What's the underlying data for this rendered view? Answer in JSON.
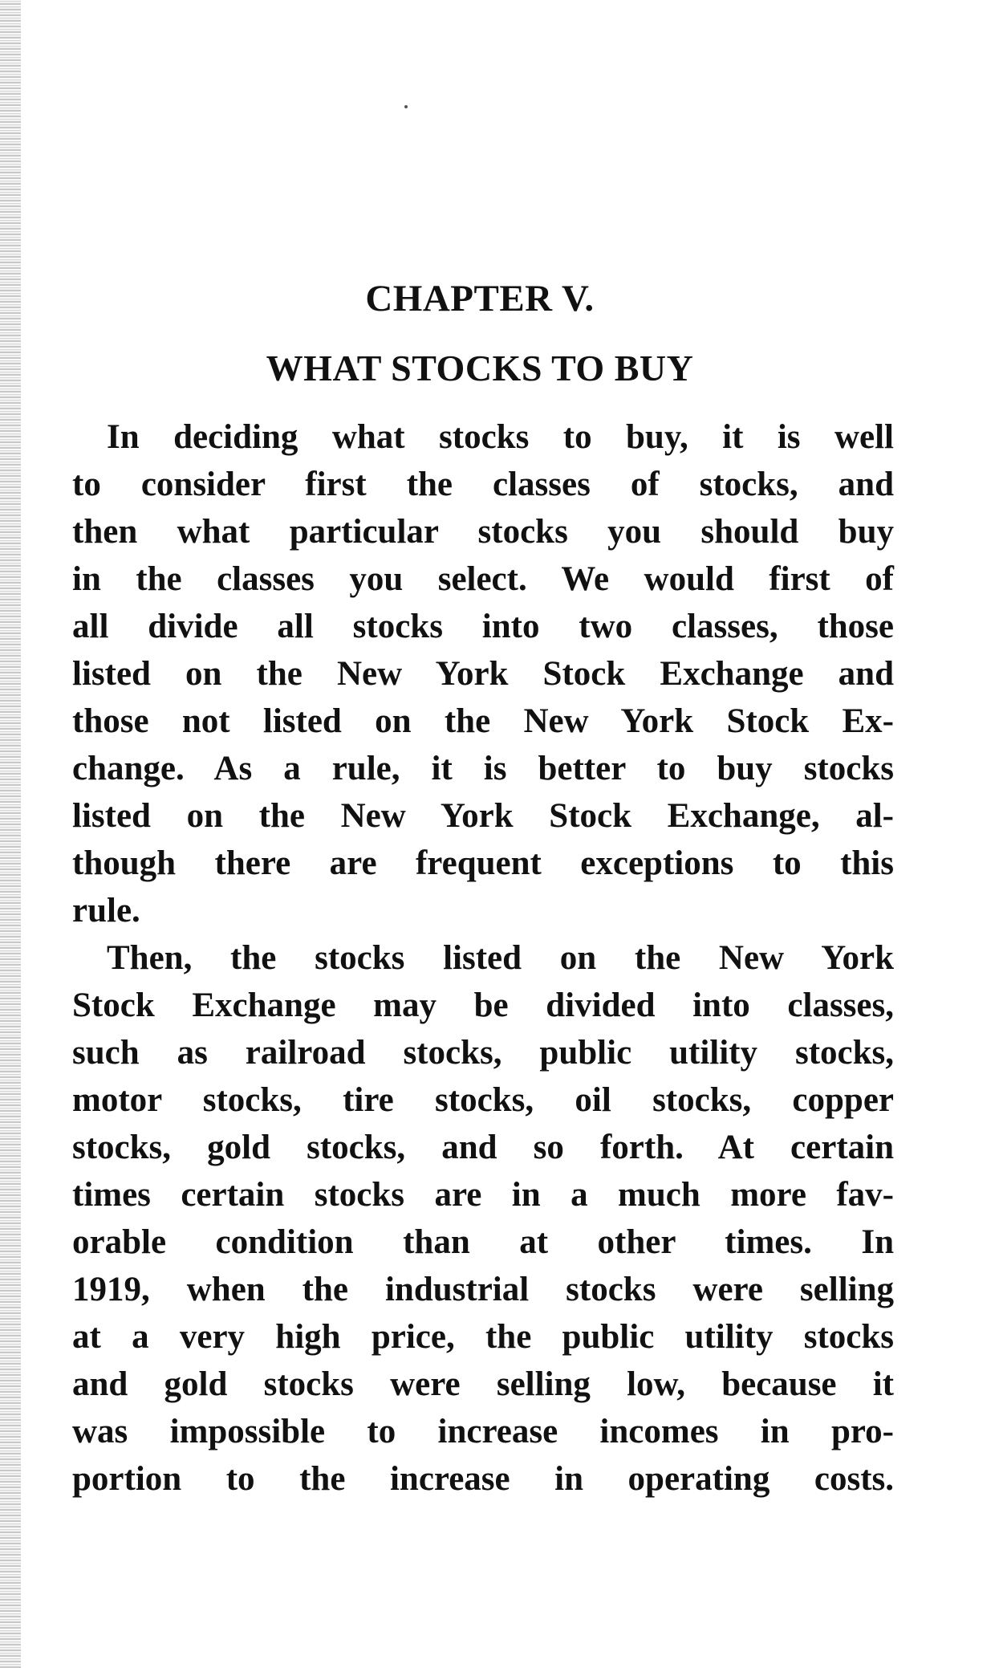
{
  "chapter": "CHAPTER V.",
  "title": "WHAT STOCKS TO BUY",
  "paragraphs": [
    {
      "lines": [
        "In deciding what stocks to buy, it is well",
        "to consider first the classes of stocks, and",
        "then what particular stocks you should buy",
        "in the classes you select.  We would first of",
        "all divide all stocks into two classes, those",
        "listed on the New York Stock Exchange and",
        "those not listed on the New York Stock Ex-",
        "change.  As a rule, it is better to buy stocks",
        "listed on the New York Stock Exchange, al-",
        "though there are frequent exceptions to this",
        "rule."
      ]
    },
    {
      "lines": [
        "Then, the stocks listed on the New York",
        "Stock Exchange may be divided into classes,",
        "such as railroad stocks, public utility stocks,",
        "motor stocks, tire stocks, oil stocks, copper",
        "stocks, gold stocks, and so forth.  At certain",
        "times certain stocks are in a much more fav-",
        "orable condition than at other times.  In",
        "1919, when the industrial stocks were selling",
        "at a very high price, the public utility stocks",
        "and gold stocks were selling low, because it",
        "was impossible to increase incomes in pro-",
        "portion to the increase in operating costs."
      ]
    }
  ]
}
